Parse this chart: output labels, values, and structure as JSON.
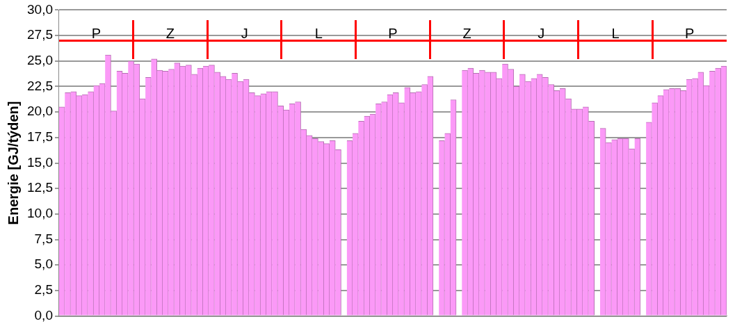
{
  "chart_data": {
    "type": "bar",
    "ylabel": "Energie [GJ/týden]",
    "categories": [
      null,
      null,
      null,
      null,
      null,
      null,
      null,
      null,
      null,
      null,
      null,
      null,
      null,
      null,
      null,
      null,
      null,
      null,
      null,
      null,
      null,
      null,
      null,
      null,
      null,
      null,
      null,
      null,
      null,
      null,
      null,
      null,
      null,
      null,
      null,
      null,
      null,
      null,
      null,
      null,
      null,
      null,
      null,
      null,
      null,
      null,
      null,
      null,
      null,
      null,
      null,
      null,
      null,
      null,
      null,
      null,
      null,
      null,
      null,
      null,
      null,
      null,
      null,
      null,
      null,
      null,
      null,
      null,
      null,
      null,
      null,
      null,
      null,
      null,
      null,
      null,
      null,
      null,
      null,
      null,
      null,
      null,
      null,
      null,
      null,
      null,
      null,
      null,
      null,
      null,
      null,
      null,
      null,
      null,
      null,
      null,
      null,
      null,
      null,
      null,
      null,
      null,
      null,
      null,
      null,
      null,
      null,
      null,
      null,
      null,
      null,
      null,
      null,
      null,
      null,
      null
    ],
    "values": [
      20.5,
      21.9,
      22.0,
      21.6,
      21.7,
      22.0,
      22.6,
      22.8,
      25.6,
      20.1,
      24.0,
      23.8,
      25.0,
      24.7,
      21.3,
      23.4,
      25.2,
      24.1,
      24.0,
      24.2,
      24.8,
      24.5,
      24.6,
      23.7,
      24.3,
      24.5,
      24.6,
      23.9,
      23.5,
      23.2,
      23.8,
      23.0,
      23.2,
      21.9,
      21.6,
      21.8,
      22.0,
      22.0,
      20.6,
      20.2,
      20.8,
      21.0,
      18.3,
      17.7,
      17.4,
      17.1,
      16.9,
      17.2,
      16.3,
      0,
      17.2,
      17.9,
      19.1,
      19.6,
      19.8,
      20.8,
      21.0,
      21.7,
      21.9,
      20.9,
      22.4,
      21.9,
      22.0,
      22.7,
      23.5,
      0,
      17.2,
      17.9,
      21.2,
      0,
      24.1,
      24.3,
      23.8,
      24.1,
      23.9,
      23.9,
      23.3,
      24.7,
      24.2,
      22.5,
      23.7,
      23.0,
      23.3,
      23.7,
      23.4,
      22.7,
      22.1,
      22.3,
      21.3,
      20.3,
      20.3,
      20.5,
      19.1,
      0,
      18.4,
      17.0,
      17.3,
      17.4,
      17.4,
      16.4,
      17.4,
      0,
      19.0,
      20.9,
      21.6,
      22.2,
      22.3,
      22.3,
      22.1,
      23.2,
      23.3,
      23.9,
      22.6,
      24.0,
      24.3,
      24.5
    ],
    "color": "#fb99f7",
    "ylim": [
      0,
      30
    ],
    "yticks": [
      {
        "value": 0,
        "label": "0,0"
      },
      {
        "value": 2.5,
        "label": "2,5"
      },
      {
        "value": 5,
        "label": "5,0"
      },
      {
        "value": 7.5,
        "label": "7,5"
      },
      {
        "value": 10,
        "label": "10,0"
      },
      {
        "value": 12.5,
        "label": "12,5"
      },
      {
        "value": 15,
        "label": "15,0"
      },
      {
        "value": 17.5,
        "label": "17,5"
      },
      {
        "value": 20,
        "label": "20,0"
      },
      {
        "value": 22.5,
        "label": "22,5"
      },
      {
        "value": 25,
        "label": "25,0"
      },
      {
        "value": 27.5,
        "label": "27,5"
      },
      {
        "value": 30,
        "label": "30,0"
      }
    ],
    "grid": "y",
    "legend": false,
    "tick_labels": "y",
    "ref_lines": [
      {
        "axis": "y",
        "value": 27,
        "color": "#ff0000"
      }
    ],
    "annotations": [
      "P",
      "Z",
      "J",
      "L",
      "P",
      "Z",
      "J",
      "L",
      "P"
    ]
  }
}
